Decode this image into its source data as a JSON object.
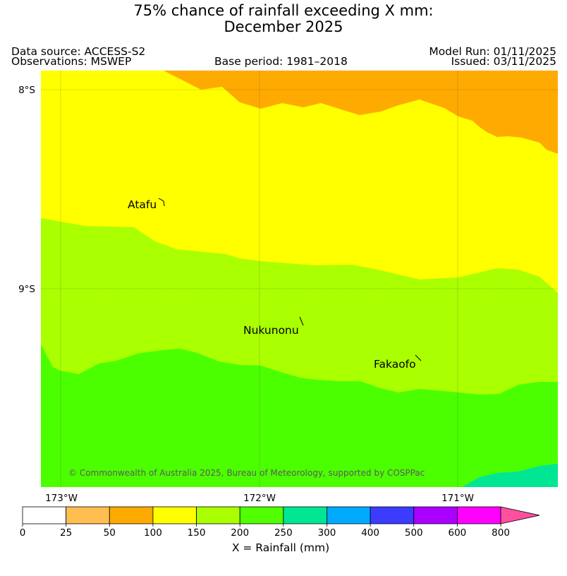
{
  "title": {
    "line1": "75% chance of rainfall exceeding X mm:",
    "line2": "December 2025"
  },
  "header": {
    "data_source": "Data source: ACCESS-S2",
    "observations": "Observations: MSWEP",
    "base_period": "Base period: 1981–2018",
    "model_run": "Model Run: 01/11/2025",
    "issued": "Issued: 03/11/2025"
  },
  "map": {
    "lat_labels": [
      "8°S",
      "9°S"
    ],
    "lon_labels": [
      "173°W",
      "172°W",
      "171°W"
    ],
    "places": [
      {
        "name": "Atafu"
      },
      {
        "name": "Nukunonu"
      },
      {
        "name": "Fakaofo"
      }
    ],
    "copyright": "© Commonwealth of Australia 2025, Bureau of Meteorology, supported by COSPPac"
  },
  "legend": {
    "title": "X = Rainfall (mm)",
    "ticks": [
      "0",
      "25",
      "50",
      "100",
      "150",
      "200",
      "250",
      "300",
      "400",
      "500",
      "600",
      "800"
    ],
    "colors": [
      "#ffffff",
      "#ffbe50",
      "#ffaa00",
      "#ffff00",
      "#aaff00",
      "#50ff00",
      "#00e693",
      "#00aaff",
      "#3c3cff",
      "#aa00ff",
      "#ff00ff",
      "#ff50a0"
    ]
  }
}
